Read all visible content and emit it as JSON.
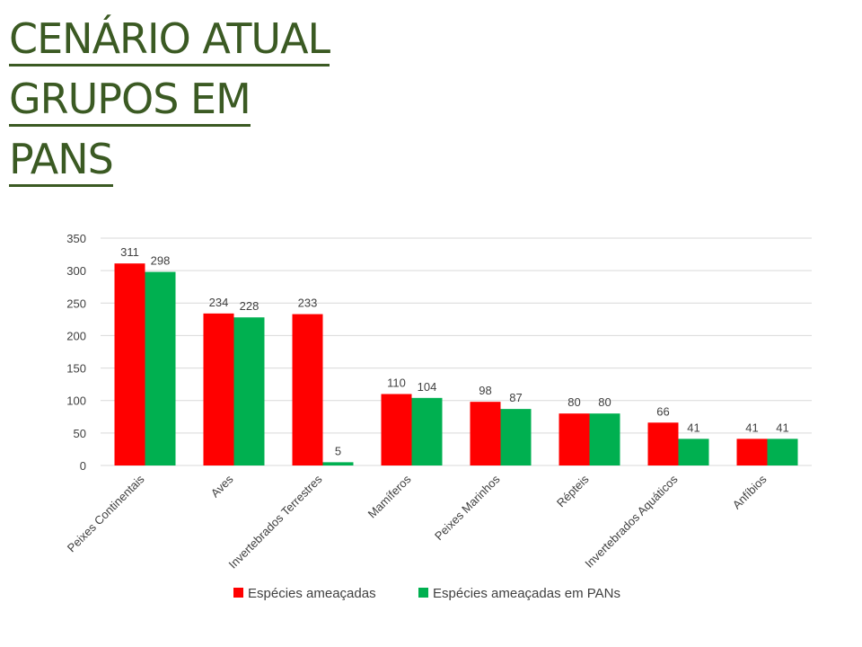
{
  "title_lines": [
    "CENÁRIO ATUAL",
    "GRUPOS EM",
    "PANS"
  ],
  "chart_data": {
    "type": "bar",
    "categories": [
      "Peixes Continentais",
      "Aves",
      "Invertebrados Terrestres",
      "Mamíferos",
      "Peixes Marinhos",
      "Répteis",
      "Invertebrados Aquáticos",
      "Anfíbios"
    ],
    "series": [
      {
        "name": "Espécies ameaçadas",
        "color": "#ff0000",
        "values": [
          311,
          234,
          233,
          110,
          98,
          80,
          66,
          41
        ]
      },
      {
        "name": "Espécies ameaçadas em PANs",
        "color": "#00b050",
        "values": [
          298,
          228,
          5,
          104,
          87,
          80,
          41,
          41
        ]
      }
    ],
    "yticks": [
      0,
      50,
      100,
      150,
      200,
      250,
      300,
      350
    ],
    "ylim": [
      0,
      350
    ],
    "grid": true,
    "legend": "bottom",
    "data_labels": true
  }
}
